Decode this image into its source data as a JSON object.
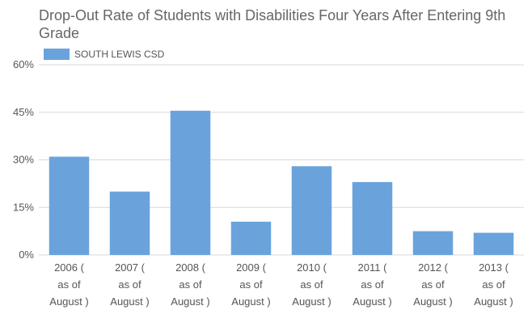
{
  "chart_data": {
    "type": "bar",
    "title": "Drop-Out Rate of Students with Disabilities Four Years After Entering 9th Grade",
    "series": [
      {
        "name": "SOUTH LEWIS CSD",
        "color": "#6aa3dc",
        "values": [
          31,
          20,
          45.5,
          10.5,
          28,
          23,
          7.5,
          7
        ]
      }
    ],
    "categories": [
      [
        "2006 (",
        "as of",
        "August )"
      ],
      [
        "2007 (",
        "as of",
        "August )"
      ],
      [
        "2008 (",
        "as of",
        "August )"
      ],
      [
        "2009 (",
        "as of",
        "August )"
      ],
      [
        "2010 (",
        "as of",
        "August )"
      ],
      [
        "2011 (",
        "as of",
        "August )"
      ],
      [
        "2012 (",
        "as of",
        "August )"
      ],
      [
        "2013 (",
        "as of",
        "August )"
      ]
    ],
    "y_ticks": [
      "0%",
      "15%",
      "30%",
      "45%",
      "60%"
    ],
    "y_tick_values": [
      0,
      15,
      30,
      45,
      60
    ],
    "ylim": [
      0,
      60
    ],
    "grid": true,
    "legend_position": "top-left",
    "colors": {
      "grid": "#d9d9d9",
      "axis_text": "#555555",
      "title": "#666666"
    }
  }
}
